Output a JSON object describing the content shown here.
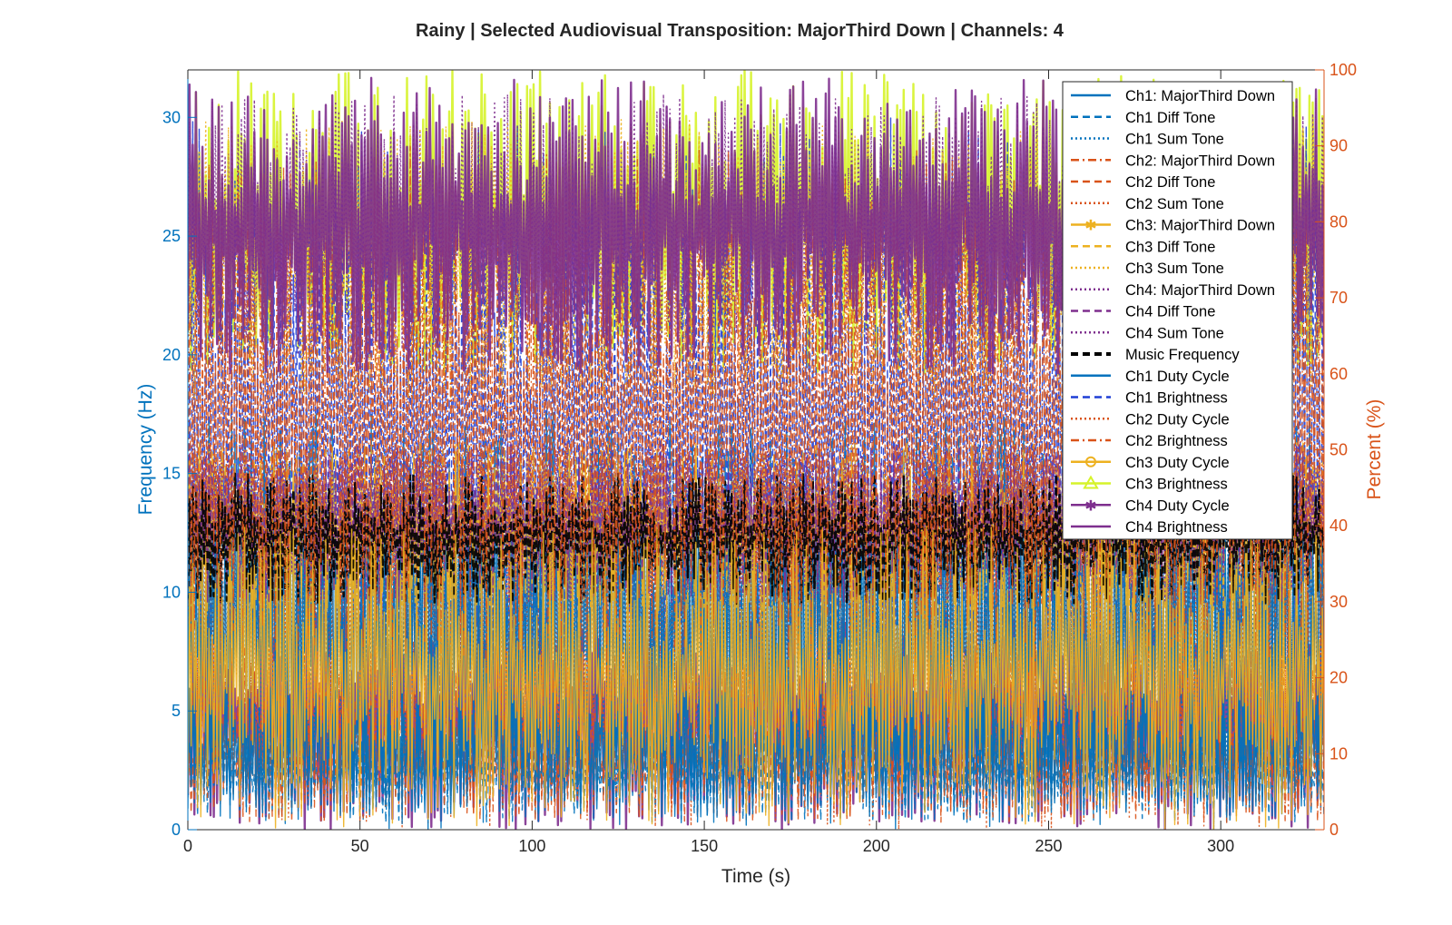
{
  "chart_data": {
    "type": "line",
    "title": "Rainy | Selected Audiovisual Transposition: MajorThird Down | Channels: 4",
    "xlabel": "Time (s)",
    "ylabel_left": "Frequency (Hz)",
    "ylabel_right": "Percent (%)",
    "xlim": [
      0,
      330
    ],
    "ylim_left": [
      0,
      32
    ],
    "ylim_right": [
      0,
      100
    ],
    "x_ticks": [
      "0",
      "50",
      "100",
      "150",
      "200",
      "250",
      "300"
    ],
    "y_left_ticks": [
      "0",
      "5",
      "10",
      "15",
      "20",
      "25",
      "30"
    ],
    "y_right_ticks": [
      "0",
      "10",
      "20",
      "30",
      "40",
      "50",
      "60",
      "70",
      "80",
      "90",
      "100"
    ],
    "legend_position": "top-right",
    "grid": false,
    "colors": {
      "left_axis": "#0072BD",
      "right_axis": "#D95319",
      "ch1": "#0072BD",
      "ch1_brightness": "#1f3fd6",
      "ch2": "#D95319",
      "ch3": "#EDB120",
      "ch3_brightness": "#d6f32a",
      "ch4": "#7E2F8E",
      "music": "#000000"
    },
    "series": [
      {
        "name": "Ch1: MajorThird Down",
        "axis": "left",
        "color": "#0072BD",
        "style": "solid",
        "band": [
          0.5,
          6
        ]
      },
      {
        "name": "Ch1 Diff Tone",
        "axis": "left",
        "color": "#0072BD",
        "style": "dashed",
        "band": [
          0.3,
          4
        ]
      },
      {
        "name": "Ch1 Sum Tone",
        "axis": "left",
        "color": "#0072BD",
        "style": "dotted",
        "band": [
          1,
          16
        ]
      },
      {
        "name": "Ch2: MajorThird Down",
        "axis": "left",
        "color": "#D95319",
        "style": "dashdot",
        "band": [
          0.5,
          8
        ]
      },
      {
        "name": "Ch2 Diff Tone",
        "axis": "left",
        "color": "#D95319",
        "style": "dashed",
        "band": [
          0.3,
          5
        ]
      },
      {
        "name": "Ch2 Sum Tone",
        "axis": "left",
        "color": "#D95319",
        "style": "dotted",
        "band": [
          2,
          16
        ]
      },
      {
        "name": "Ch3: MajorThird Down",
        "axis": "left",
        "color": "#EDB120",
        "style": "solid",
        "marker": "star",
        "band": [
          9.2,
          16.3
        ]
      },
      {
        "name": "Ch3 Diff Tone",
        "axis": "left",
        "color": "#EDB120",
        "style": "dashed",
        "band": [
          9.2,
          16.3
        ]
      },
      {
        "name": "Ch3 Sum Tone",
        "axis": "left",
        "color": "#EDB120",
        "style": "dotted",
        "band": [
          18,
          30
        ]
      },
      {
        "name": "Ch4: MajorThird Down",
        "axis": "left",
        "color": "#7E2F8E",
        "style": "dotted",
        "band": [
          9.5,
          16.3
        ]
      },
      {
        "name": "Ch4 Diff Tone",
        "axis": "left",
        "color": "#7E2F8E",
        "style": "dashed",
        "band": [
          9.5,
          16.3
        ]
      },
      {
        "name": "Ch4 Sum Tone",
        "axis": "left",
        "color": "#7E2F8E",
        "style": "dotted",
        "band": [
          20,
          31
        ]
      },
      {
        "name": "Music Frequency",
        "axis": "left",
        "color": "#000000",
        "style": "dashed",
        "band": [
          9.5,
          15
        ]
      },
      {
        "name": "Ch1 Duty Cycle",
        "axis": "right",
        "color": "#0072BD",
        "style": "solid",
        "band": [
          0,
          55
        ]
      },
      {
        "name": "Ch1 Brightness",
        "axis": "right",
        "color": "#1f3fd6",
        "style": "dashed",
        "band": [
          10,
          95
        ]
      },
      {
        "name": "Ch2 Duty Cycle",
        "axis": "right",
        "color": "#D95319",
        "style": "dotted",
        "band": [
          0,
          50
        ]
      },
      {
        "name": "Ch2 Brightness",
        "axis": "right",
        "color": "#D95319",
        "style": "dashdot",
        "band": [
          20,
          90
        ]
      },
      {
        "name": "Ch3 Duty Cycle",
        "axis": "right",
        "color": "#EDB120",
        "style": "solid",
        "marker": "circle",
        "band": [
          0,
          40
        ]
      },
      {
        "name": "Ch3 Brightness",
        "axis": "right",
        "color": "#d6f32a",
        "style": "solid",
        "marker": "triangle",
        "band": [
          60,
          100
        ]
      },
      {
        "name": "Ch4 Duty Cycle",
        "axis": "right",
        "color": "#7E2F8E",
        "style": "solid",
        "marker": "star",
        "band": [
          0,
          30
        ]
      },
      {
        "name": "Ch4 Brightness",
        "axis": "right",
        "color": "#7E2F8E",
        "style": "solid",
        "band": [
          60,
          99
        ]
      }
    ]
  }
}
